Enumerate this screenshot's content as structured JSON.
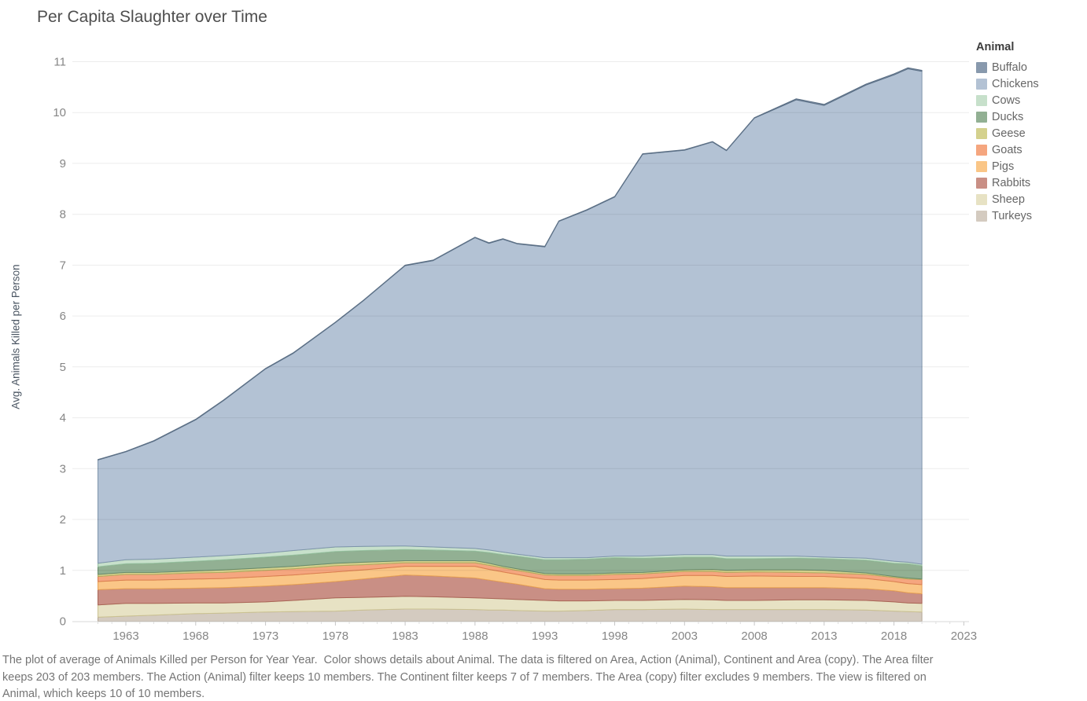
{
  "chart_data": {
    "type": "area",
    "stacked": true,
    "title": "Per Capita Slaughter over Time",
    "xlabel": "",
    "ylabel": "Avg. Animals Killed per Person",
    "legend_title": "Animal",
    "legend_position": "top-right",
    "grid": "horizontal-only",
    "x_axis": {
      "ticks": [
        1963,
        1968,
        1973,
        1978,
        1983,
        1988,
        1993,
        1998,
        2003,
        2008,
        2013,
        2018,
        2023
      ],
      "range": [
        1960.2,
        2023.4
      ]
    },
    "y_axis": {
      "ticks": [
        0,
        1,
        2,
        3,
        4,
        5,
        6,
        7,
        8,
        9,
        10,
        11
      ],
      "range": [
        0,
        11.25
      ]
    },
    "years": [
      1961,
      1963,
      1965,
      1968,
      1970,
      1973,
      1975,
      1978,
      1980,
      1983,
      1985,
      1988,
      1989,
      1990,
      1991,
      1993,
      1994,
      1996,
      1998,
      2000,
      2003,
      2005,
      2006,
      2008,
      2011,
      2013,
      2016,
      2018,
      2019,
      2020
    ],
    "stack_order_bottom_to_top": [
      "Turkeys",
      "Sheep",
      "Rabbits",
      "Pigs",
      "Goats",
      "Geese",
      "Ducks",
      "Cows",
      "Chickens",
      "Buffalo"
    ],
    "series": [
      {
        "name": "Buffalo",
        "color": "#8899AD",
        "border": "#5C7086",
        "values": [
          0.01,
          0.01,
          0.01,
          0.01,
          0.01,
          0.01,
          0.01,
          0.01,
          0.01,
          0.01,
          0.01,
          0.01,
          0.01,
          0.01,
          0.01,
          0.01,
          0.01,
          0.01,
          0.01,
          0.01,
          0.01,
          0.01,
          0.01,
          0.01,
          0.02,
          0.02,
          0.02,
          0.02,
          0.02,
          0.02
        ]
      },
      {
        "name": "Chickens",
        "color": "#B3C2D4",
        "border": "#7E94AB",
        "values": [
          2.03,
          2.12,
          2.32,
          2.7,
          3.05,
          3.62,
          3.88,
          4.41,
          4.83,
          5.51,
          5.63,
          6.11,
          6.03,
          6.15,
          6.1,
          6.11,
          6.61,
          6.83,
          7.06,
          7.9,
          7.95,
          8.11,
          7.97,
          8.61,
          8.97,
          8.88,
          9.3,
          9.56,
          9.7,
          9.69
        ]
      },
      {
        "name": "Cows",
        "color": "#C7E0CB",
        "border": "#97C2A0",
        "values": [
          0.07,
          0.08,
          0.08,
          0.08,
          0.08,
          0.08,
          0.09,
          0.09,
          0.08,
          0.07,
          0.06,
          0.05,
          0.05,
          0.05,
          0.04,
          0.04,
          0.04,
          0.03,
          0.03,
          0.04,
          0.05,
          0.05,
          0.05,
          0.05,
          0.04,
          0.03,
          0.04,
          0.04,
          0.03,
          0.03
        ]
      },
      {
        "name": "Ducks",
        "color": "#92B093",
        "border": "#678A6C",
        "values": [
          0.15,
          0.17,
          0.18,
          0.19,
          0.2,
          0.21,
          0.22,
          0.23,
          0.23,
          0.22,
          0.21,
          0.19,
          0.21,
          0.23,
          0.25,
          0.27,
          0.28,
          0.29,
          0.3,
          0.28,
          0.25,
          0.24,
          0.23,
          0.22,
          0.23,
          0.23,
          0.25,
          0.26,
          0.28,
          0.26
        ]
      },
      {
        "name": "Geese",
        "color": "#D4D18D",
        "border": "#B0AC5E",
        "values": [
          0.04,
          0.04,
          0.04,
          0.04,
          0.05,
          0.05,
          0.05,
          0.05,
          0.05,
          0.04,
          0.04,
          0.04,
          0.04,
          0.03,
          0.03,
          0.03,
          0.03,
          0.03,
          0.03,
          0.03,
          0.03,
          0.04,
          0.04,
          0.04,
          0.05,
          0.05,
          0.03,
          0.02,
          0.02,
          0.01
        ]
      },
      {
        "name": "Goats",
        "color": "#F5A67F",
        "border": "#D97E51",
        "values": [
          0.1,
          0.11,
          0.11,
          0.12,
          0.12,
          0.12,
          0.12,
          0.12,
          0.1,
          0.07,
          0.07,
          0.07,
          0.08,
          0.08,
          0.08,
          0.09,
          0.09,
          0.09,
          0.1,
          0.09,
          0.08,
          0.08,
          0.08,
          0.08,
          0.08,
          0.07,
          0.08,
          0.08,
          0.09,
          0.1
        ]
      },
      {
        "name": "Pigs",
        "color": "#FAC687",
        "border": "#E8A254",
        "values": [
          0.16,
          0.17,
          0.17,
          0.18,
          0.18,
          0.19,
          0.19,
          0.19,
          0.18,
          0.17,
          0.19,
          0.23,
          0.21,
          0.2,
          0.19,
          0.18,
          0.18,
          0.18,
          0.18,
          0.19,
          0.21,
          0.22,
          0.22,
          0.23,
          0.22,
          0.22,
          0.2,
          0.18,
          0.18,
          0.18
        ]
      },
      {
        "name": "Rabbits",
        "color": "#C98F85",
        "border": "#A96456",
        "values": [
          0.3,
          0.29,
          0.29,
          0.29,
          0.3,
          0.31,
          0.31,
          0.32,
          0.36,
          0.42,
          0.41,
          0.39,
          0.36,
          0.33,
          0.3,
          0.23,
          0.23,
          0.23,
          0.23,
          0.24,
          0.26,
          0.26,
          0.25,
          0.25,
          0.24,
          0.24,
          0.23,
          0.22,
          0.2,
          0.19
        ]
      },
      {
        "name": "Sheep",
        "color": "#E7E2C4",
        "border": "#CBC291",
        "values": [
          0.24,
          0.25,
          0.23,
          0.21,
          0.2,
          0.2,
          0.22,
          0.26,
          0.25,
          0.25,
          0.24,
          0.23,
          0.23,
          0.22,
          0.22,
          0.21,
          0.2,
          0.19,
          0.18,
          0.18,
          0.19,
          0.19,
          0.18,
          0.18,
          0.19,
          0.19,
          0.19,
          0.18,
          0.17,
          0.17
        ]
      },
      {
        "name": "Turkeys",
        "color": "#D4CBC0",
        "border": "#B3A594",
        "values": [
          0.08,
          0.1,
          0.12,
          0.15,
          0.16,
          0.18,
          0.19,
          0.2,
          0.22,
          0.24,
          0.24,
          0.23,
          0.22,
          0.22,
          0.21,
          0.2,
          0.2,
          0.21,
          0.23,
          0.23,
          0.24,
          0.23,
          0.23,
          0.23,
          0.23,
          0.23,
          0.22,
          0.2,
          0.19,
          0.18
        ]
      }
    ]
  },
  "caption": "The plot of average of Animals Killed per Person for Year Year.  Color shows details about Animal. The data is filtered on Area, Action (Animal), Continent and Area (copy). The Area filter keeps 203 of 203 members. The Action (Animal) filter keeps 10 members. The Continent filter keeps 7 of 7 members. The Area (copy) filter excludes 9 members. The view is filtered on Animal, which keeps 10 of 10 members."
}
